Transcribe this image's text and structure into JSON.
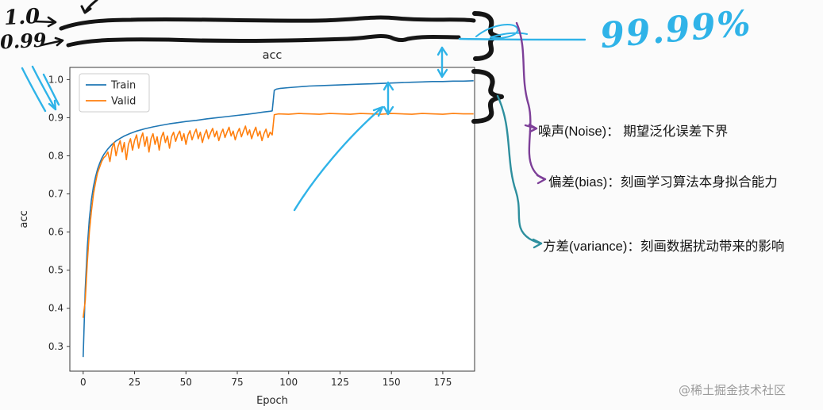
{
  "colors": {
    "train": "#1f77b4",
    "valid": "#ff7f0e",
    "ink_black": "#151515",
    "ink_cyan": "#2fb3e8",
    "ink_purple": "#7d3f98",
    "ink_teal": "#2e8f9e",
    "watermark": "#9b9b9b",
    "chart_text": "#262626"
  },
  "handwritten": {
    "top_value": "1.0",
    "second_value": "0.99",
    "accuracy_callout": "99.99%"
  },
  "annotations": [
    {
      "label": "噪声(Noise)： 期望泛化误差下界"
    },
    {
      "label": "偏差(bias)：刻画学习算法本身拟合能力"
    },
    {
      "label": "方差(variance)：刻画数据扰动带来的影响"
    }
  ],
  "watermark": "@稀土掘金技术社区",
  "chart_data": {
    "type": "line",
    "title": "acc",
    "xlabel": "Epoch",
    "ylabel": "acc",
    "x_ticks": [
      0,
      25,
      50,
      75,
      100,
      125,
      150,
      175
    ],
    "y_ticks": [
      1.0,
      0.9,
      0.8,
      0.7,
      0.6,
      0.5,
      0.4,
      0.3
    ],
    "xlim": [
      -6.5,
      190.5
    ],
    "ylim": [
      0.235,
      1.032
    ],
    "grid": false,
    "legend": {
      "position": "upper left",
      "entries": [
        "Train",
        "Valid"
      ]
    },
    "series": [
      {
        "name": "Train",
        "color": "#1f77b4",
        "points": [
          [
            0,
            0.272
          ],
          [
            1,
            0.45
          ],
          [
            2,
            0.56
          ],
          [
            3,
            0.635
          ],
          [
            4,
            0.685
          ],
          [
            5,
            0.72
          ],
          [
            6,
            0.745
          ],
          [
            7,
            0.765
          ],
          [
            8,
            0.78
          ],
          [
            9,
            0.793
          ],
          [
            10,
            0.803
          ],
          [
            12,
            0.818
          ],
          [
            14,
            0.83
          ],
          [
            16,
            0.839
          ],
          [
            18,
            0.846
          ],
          [
            20,
            0.852
          ],
          [
            23,
            0.859
          ],
          [
            26,
            0.865
          ],
          [
            30,
            0.871
          ],
          [
            34,
            0.876
          ],
          [
            38,
            0.88
          ],
          [
            42,
            0.884
          ],
          [
            46,
            0.887
          ],
          [
            50,
            0.89
          ],
          [
            55,
            0.893
          ],
          [
            60,
            0.897
          ],
          [
            65,
            0.9
          ],
          [
            70,
            0.903
          ],
          [
            75,
            0.906
          ],
          [
            80,
            0.909
          ],
          [
            84,
            0.912
          ],
          [
            88,
            0.915
          ],
          [
            91,
            0.917
          ],
          [
            92,
            0.918
          ],
          [
            93,
            0.972
          ],
          [
            94,
            0.975
          ],
          [
            96,
            0.977
          ],
          [
            100,
            0.979
          ],
          [
            105,
            0.981
          ],
          [
            110,
            0.983
          ],
          [
            115,
            0.984
          ],
          [
            120,
            0.985
          ],
          [
            125,
            0.986
          ],
          [
            130,
            0.987
          ],
          [
            135,
            0.988
          ],
          [
            140,
            0.989
          ],
          [
            145,
            0.99
          ],
          [
            150,
            0.991
          ],
          [
            155,
            0.992
          ],
          [
            160,
            0.993
          ],
          [
            165,
            0.994
          ],
          [
            170,
            0.995
          ],
          [
            175,
            0.995
          ],
          [
            180,
            0.996
          ],
          [
            185,
            0.996
          ],
          [
            190,
            0.997
          ]
        ]
      },
      {
        "name": "Valid",
        "color": "#ff7f0e",
        "points": [
          [
            0,
            0.375
          ],
          [
            1,
            0.42
          ],
          [
            2,
            0.52
          ],
          [
            3,
            0.6
          ],
          [
            4,
            0.655
          ],
          [
            5,
            0.7
          ],
          [
            6,
            0.73
          ],
          [
            7,
            0.755
          ],
          [
            8,
            0.77
          ],
          [
            9,
            0.785
          ],
          [
            10,
            0.795
          ],
          [
            11,
            0.8
          ],
          [
            12,
            0.81
          ],
          [
            13,
            0.785
          ],
          [
            14,
            0.82
          ],
          [
            15,
            0.835
          ],
          [
            16,
            0.8
          ],
          [
            17,
            0.825
          ],
          [
            18,
            0.84
          ],
          [
            19,
            0.81
          ],
          [
            20,
            0.835
          ],
          [
            21,
            0.79
          ],
          [
            22,
            0.83
          ],
          [
            23,
            0.845
          ],
          [
            24,
            0.815
          ],
          [
            25,
            0.84
          ],
          [
            26,
            0.855
          ],
          [
            27,
            0.82
          ],
          [
            28,
            0.845
          ],
          [
            29,
            0.86
          ],
          [
            30,
            0.825
          ],
          [
            31,
            0.85
          ],
          [
            32,
            0.81
          ],
          [
            33,
            0.845
          ],
          [
            34,
            0.858
          ],
          [
            35,
            0.83
          ],
          [
            36,
            0.85
          ],
          [
            37,
            0.815
          ],
          [
            38,
            0.848
          ],
          [
            39,
            0.862
          ],
          [
            40,
            0.835
          ],
          [
            41,
            0.852
          ],
          [
            42,
            0.82
          ],
          [
            43,
            0.85
          ],
          [
            44,
            0.862
          ],
          [
            45,
            0.838
          ],
          [
            46,
            0.855
          ],
          [
            47,
            0.865
          ],
          [
            48,
            0.84
          ],
          [
            49,
            0.858
          ],
          [
            50,
            0.83
          ],
          [
            51,
            0.855
          ],
          [
            52,
            0.866
          ],
          [
            53,
            0.842
          ],
          [
            54,
            0.858
          ],
          [
            55,
            0.87
          ],
          [
            56,
            0.845
          ],
          [
            57,
            0.862
          ],
          [
            58,
            0.835
          ],
          [
            59,
            0.855
          ],
          [
            60,
            0.868
          ],
          [
            61,
            0.845
          ],
          [
            62,
            0.86
          ],
          [
            63,
            0.872
          ],
          [
            64,
            0.85
          ],
          [
            65,
            0.865
          ],
          [
            66,
            0.84
          ],
          [
            67,
            0.858
          ],
          [
            68,
            0.87
          ],
          [
            69,
            0.848
          ],
          [
            70,
            0.862
          ],
          [
            71,
            0.875
          ],
          [
            72,
            0.852
          ],
          [
            73,
            0.865
          ],
          [
            74,
            0.842
          ],
          [
            75,
            0.86
          ],
          [
            76,
            0.872
          ],
          [
            77,
            0.85
          ],
          [
            78,
            0.865
          ],
          [
            79,
            0.878
          ],
          [
            80,
            0.855
          ],
          [
            81,
            0.868
          ],
          [
            82,
            0.845
          ],
          [
            83,
            0.862
          ],
          [
            84,
            0.875
          ],
          [
            85,
            0.852
          ],
          [
            86,
            0.865
          ],
          [
            87,
            0.84
          ],
          [
            88,
            0.858
          ],
          [
            89,
            0.87
          ],
          [
            90,
            0.848
          ],
          [
            91,
            0.862
          ],
          [
            92,
            0.855
          ],
          [
            93,
            0.908
          ],
          [
            95,
            0.91
          ],
          [
            100,
            0.909
          ],
          [
            105,
            0.911
          ],
          [
            110,
            0.91
          ],
          [
            115,
            0.909
          ],
          [
            120,
            0.911
          ],
          [
            125,
            0.91
          ],
          [
            130,
            0.909
          ],
          [
            135,
            0.911
          ],
          [
            140,
            0.91
          ],
          [
            145,
            0.909
          ],
          [
            150,
            0.911
          ],
          [
            155,
            0.91
          ],
          [
            160,
            0.909
          ],
          [
            165,
            0.911
          ],
          [
            170,
            0.91
          ],
          [
            175,
            0.909
          ],
          [
            180,
            0.911
          ],
          [
            185,
            0.91
          ],
          [
            190,
            0.91
          ]
        ]
      }
    ]
  }
}
